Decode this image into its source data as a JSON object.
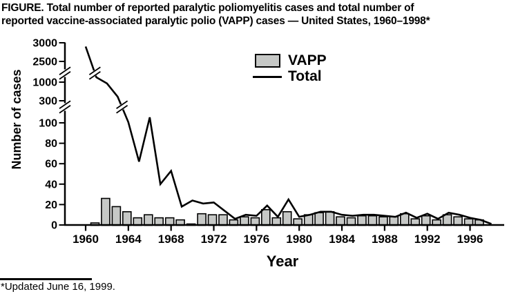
{
  "figure": {
    "title_line1": "FIGURE. Total number of reported paralytic poliomyelitis cases and total number of",
    "title_line2": "reported vaccine-associated paralytic polio (VAPP) cases — United States, 1960–1998*",
    "footnote": "*Updated June 16, 1999."
  },
  "chart_data": {
    "type": "bar+line",
    "title": "Total number of reported paralytic poliomyelitis cases and total number of reported vaccine-associated paralytic polio (VAPP) cases — United States, 1960–1998",
    "xlabel": "Year",
    "ylabel": "Number of cases",
    "x": [
      1960,
      1961,
      1962,
      1963,
      1964,
      1965,
      1966,
      1967,
      1968,
      1969,
      1970,
      1971,
      1972,
      1973,
      1974,
      1975,
      1976,
      1977,
      1978,
      1979,
      1980,
      1981,
      1982,
      1983,
      1984,
      1985,
      1986,
      1987,
      1988,
      1989,
      1990,
      1991,
      1992,
      1993,
      1994,
      1995,
      1996,
      1997,
      1998
    ],
    "series": [
      {
        "name": "VAPP",
        "type": "bar",
        "color": "#c6c8c6",
        "values": [
          0,
          2,
          26,
          18,
          13,
          7,
          10,
          7,
          7,
          5,
          1,
          11,
          10,
          10,
          5,
          8,
          7,
          15,
          7,
          13,
          6,
          10,
          12,
          13,
          8,
          7,
          9,
          9,
          8,
          8,
          11,
          6,
          9,
          5,
          10,
          8,
          6,
          5,
          0
        ]
      },
      {
        "name": "Total",
        "type": "line",
        "color": "#000000",
        "values": [
          2900,
          1350,
          950,
          450,
          106,
          62,
          150,
          40,
          53,
          18,
          24,
          21,
          22,
          14,
          6,
          10,
          9,
          19,
          8,
          25,
          8,
          10,
          13,
          13,
          10,
          9,
          10,
          10,
          9,
          8,
          12,
          7,
          11,
          6,
          12,
          10,
          7,
          5,
          1
        ]
      }
    ],
    "y_ticks": [
      0,
      20,
      40,
      60,
      80,
      100,
      300,
      1000,
      2500,
      3000
    ],
    "x_ticks": [
      1960,
      1964,
      1968,
      1972,
      1976,
      1980,
      1984,
      1988,
      1992,
      1996
    ],
    "y_axis_breaks": [
      "between 100 and 300",
      "between 1000 and 2500"
    ],
    "legend_position": "top-center",
    "grid": "off"
  }
}
